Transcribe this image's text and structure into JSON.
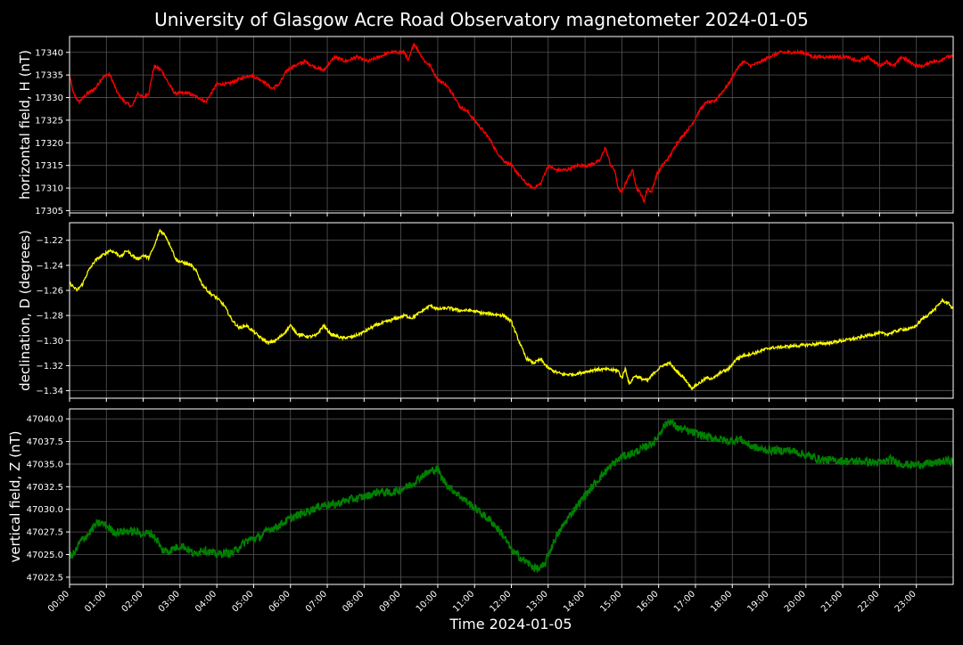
{
  "chart_data": {
    "title": "University of Glasgow Acre Road Observatory magnetometer 2024-01-05",
    "background_color": "#000000",
    "grid": true,
    "grid_color": "#555555",
    "xlabel": "Time 2024-01-05",
    "x_tick_labels": [
      "00:00",
      "01:00",
      "02:00",
      "03:00",
      "04:00",
      "05:00",
      "06:00",
      "07:00",
      "08:00",
      "09:00",
      "10:00",
      "11:00",
      "12:00",
      "13:00",
      "14:00",
      "15:00",
      "16:00",
      "17:00",
      "18:00",
      "19:00",
      "20:00",
      "21:00",
      "22:00",
      "23:00"
    ],
    "x_range_hours": [
      0,
      24
    ],
    "panels": [
      {
        "type": "line",
        "ylabel": "horizontal field, H (nT)",
        "color": "#ff0000",
        "ylim": [
          17304.5,
          17343.5
        ],
        "yticks": [
          17305,
          17310,
          17315,
          17320,
          17325,
          17330,
          17335,
          17340
        ],
        "y_tick_labels": [
          "17305",
          "17310",
          "17315",
          "17320",
          "17325",
          "17330",
          "17335",
          "17340"
        ],
        "noise": 0.35,
        "x": [
          0,
          0.1,
          0.25,
          0.5,
          0.7,
          0.85,
          1.0,
          1.1,
          1.3,
          1.5,
          1.7,
          1.85,
          2.0,
          2.15,
          2.3,
          2.5,
          2.7,
          2.85,
          3.0,
          3.2,
          3.5,
          3.7,
          4.0,
          4.3,
          4.6,
          4.9,
          5.2,
          5.5,
          5.7,
          5.9,
          6.1,
          6.4,
          6.6,
          6.9,
          7.2,
          7.5,
          7.8,
          8.1,
          8.4,
          8.7,
          9.0,
          9.1,
          9.2,
          9.35,
          9.5,
          9.65,
          9.8,
          10.0,
          10.2,
          10.4,
          10.6,
          10.8,
          11.0,
          11.2,
          11.4,
          11.6,
          11.8,
          12.0,
          12.2,
          12.4,
          12.6,
          12.8,
          13.0,
          13.2,
          13.5,
          13.8,
          14.1,
          14.4,
          14.55,
          14.7,
          14.8,
          14.9,
          15.0,
          15.15,
          15.3,
          15.4,
          15.5,
          15.6,
          15.7,
          15.8,
          15.95,
          16.1,
          16.3,
          16.5,
          16.7,
          16.9,
          17.1,
          17.3,
          17.5,
          17.7,
          17.9,
          18.1,
          18.3,
          18.5,
          18.8,
          19.0,
          19.3,
          19.6,
          19.9,
          20.2,
          20.5,
          20.8,
          21.1,
          21.4,
          21.7,
          22.0,
          22.2,
          22.4,
          22.6,
          22.8,
          23.0,
          23.2,
          23.4,
          23.6,
          23.8,
          24.0
        ],
        "values": [
          17335,
          17331,
          17329,
          17331,
          17332,
          17334,
          17335,
          17335,
          17331,
          17329,
          17328,
          17331,
          17330,
          17331,
          17337,
          17336,
          17333,
          17331,
          17331,
          17331,
          17330,
          17329,
          17333,
          17333,
          17334,
          17335,
          17334,
          17332,
          17333,
          17336,
          17337,
          17338,
          17337,
          17336,
          17339,
          17338,
          17339,
          17338,
          17339,
          17340,
          17340,
          17340,
          17338,
          17342,
          17340,
          17338,
          17337,
          17334,
          17333,
          17331,
          17328,
          17327,
          17325,
          17323,
          17321,
          17318,
          17316,
          17315,
          17313,
          17311,
          17310,
          17311,
          17315,
          17314,
          17314,
          17315,
          17315,
          17316,
          17319,
          17315,
          17314,
          17310,
          17309,
          17312,
          17314,
          17310,
          17309,
          17307,
          17310,
          17309,
          17313,
          17315,
          17317,
          17320,
          17322,
          17324,
          17327,
          17329,
          17329,
          17331,
          17333,
          17336,
          17338,
          17337,
          17338,
          17339,
          17340,
          17340,
          17340,
          17339,
          17339,
          17339,
          17339,
          17338,
          17339,
          17337,
          17338,
          17337,
          17339,
          17338,
          17337,
          17337,
          17338,
          17338,
          17339,
          17339
        ]
      },
      {
        "type": "line",
        "ylabel": "declination, D (degrees)",
        "color": "#ffff00",
        "ylim": [
          -1.346,
          -1.206
        ],
        "yticks": [
          -1.34,
          -1.32,
          -1.3,
          -1.28,
          -1.26,
          -1.24,
          -1.22
        ],
        "y_tick_labels": [
          "−1.34",
          "−1.32",
          "−1.30",
          "−1.28",
          "−1.26",
          "−1.24",
          "−1.22"
        ],
        "noise": 0.0012,
        "x": [
          0,
          0.2,
          0.35,
          0.5,
          0.7,
          0.9,
          1.1,
          1.25,
          1.4,
          1.55,
          1.7,
          1.85,
          2.0,
          2.15,
          2.3,
          2.45,
          2.6,
          2.75,
          2.9,
          3.1,
          3.3,
          3.45,
          3.6,
          3.8,
          4.0,
          4.2,
          4.4,
          4.6,
          4.8,
          5.0,
          5.2,
          5.4,
          5.6,
          5.8,
          6.0,
          6.2,
          6.5,
          6.7,
          6.9,
          7.1,
          7.4,
          7.7,
          8.0,
          8.3,
          8.5,
          8.8,
          9.1,
          9.3,
          9.5,
          9.8,
          10.0,
          10.3,
          10.6,
          10.9,
          11.2,
          11.5,
          11.8,
          12.0,
          12.2,
          12.4,
          12.6,
          12.8,
          13.0,
          13.2,
          13.4,
          13.7,
          14.0,
          14.3,
          14.6,
          14.9,
          15.0,
          15.1,
          15.2,
          15.35,
          15.5,
          15.7,
          15.9,
          16.1,
          16.3,
          16.5,
          16.7,
          16.9,
          17.1,
          17.3,
          17.5,
          17.7,
          17.9,
          18.1,
          18.3,
          18.6,
          19.0,
          19.4,
          19.8,
          20.2,
          20.6,
          21.0,
          21.4,
          21.8,
          22.0,
          22.2,
          22.4,
          22.6,
          22.8,
          23.0,
          23.15,
          23.3,
          23.5,
          23.7,
          23.9,
          24.0
        ],
        "values": [
          -1.254,
          -1.26,
          -1.255,
          -1.245,
          -1.236,
          -1.232,
          -1.228,
          -1.23,
          -1.233,
          -1.228,
          -1.232,
          -1.235,
          -1.232,
          -1.234,
          -1.225,
          -1.212,
          -1.216,
          -1.225,
          -1.236,
          -1.238,
          -1.24,
          -1.245,
          -1.255,
          -1.262,
          -1.266,
          -1.272,
          -1.283,
          -1.29,
          -1.288,
          -1.293,
          -1.298,
          -1.302,
          -1.3,
          -1.295,
          -1.288,
          -1.295,
          -1.297,
          -1.296,
          -1.288,
          -1.295,
          -1.298,
          -1.297,
          -1.293,
          -1.288,
          -1.286,
          -1.283,
          -1.28,
          -1.282,
          -1.278,
          -1.272,
          -1.275,
          -1.274,
          -1.276,
          -1.276,
          -1.278,
          -1.279,
          -1.28,
          -1.285,
          -1.3,
          -1.314,
          -1.318,
          -1.315,
          -1.322,
          -1.325,
          -1.327,
          -1.327,
          -1.325,
          -1.323,
          -1.323,
          -1.324,
          -1.33,
          -1.322,
          -1.335,
          -1.328,
          -1.33,
          -1.332,
          -1.325,
          -1.32,
          -1.318,
          -1.325,
          -1.33,
          -1.338,
          -1.334,
          -1.33,
          -1.33,
          -1.325,
          -1.323,
          -1.315,
          -1.312,
          -1.31,
          -1.306,
          -1.305,
          -1.304,
          -1.303,
          -1.302,
          -1.3,
          -1.298,
          -1.295,
          -1.294,
          -1.295,
          -1.293,
          -1.291,
          -1.291,
          -1.288,
          -1.283,
          -1.28,
          -1.275,
          -1.268,
          -1.271,
          -1.275
        ]
      },
      {
        "type": "line",
        "ylabel": "vertical field, Z (nT)",
        "color": "#008000",
        "ylim": [
          47021.7,
          47041.1
        ],
        "yticks": [
          47022.5,
          47025.0,
          47027.5,
          47030.0,
          47032.5,
          47035.0,
          47037.5,
          47040.0
        ],
        "y_tick_labels": [
          "47022.5",
          "47025.0",
          "47027.5",
          "47030.0",
          "47032.5",
          "47035.0",
          "47037.5",
          "47040.0"
        ],
        "noise": 0.45,
        "x": [
          0,
          0.15,
          0.3,
          0.5,
          0.7,
          0.85,
          1.0,
          1.2,
          1.4,
          1.6,
          1.8,
          2.0,
          2.2,
          2.4,
          2.5,
          2.7,
          2.9,
          3.05,
          3.2,
          3.4,
          3.6,
          3.8,
          4.0,
          4.2,
          4.4,
          4.6,
          4.8,
          5.0,
          5.2,
          5.4,
          5.6,
          5.8,
          6.0,
          6.3,
          6.6,
          6.9,
          7.2,
          7.5,
          7.8,
          8.1,
          8.4,
          8.7,
          9.0,
          9.3,
          9.6,
          9.8,
          10.0,
          10.1,
          10.3,
          10.6,
          10.9,
          11.2,
          11.5,
          11.8,
          12.0,
          12.2,
          12.4,
          12.6,
          12.75,
          12.9,
          13.0,
          13.2,
          13.5,
          13.8,
          14.1,
          14.4,
          14.7,
          15.0,
          15.3,
          15.6,
          15.9,
          16.1,
          16.3,
          16.5,
          16.7,
          16.9,
          17.1,
          17.3,
          17.6,
          17.9,
          18.2,
          18.5,
          18.8,
          19.2,
          19.6,
          20.0,
          20.4,
          20.8,
          21.2,
          21.6,
          22.0,
          22.3,
          22.6,
          22.9,
          23.2,
          23.5,
          23.8,
          24.0
        ],
        "values": [
          47024.8,
          47025.2,
          47026.5,
          47027.2,
          47028.3,
          47028.5,
          47028.2,
          47027.5,
          47027.5,
          47027.6,
          47027.5,
          47027.3,
          47027.4,
          47026.5,
          47025.5,
          47025.4,
          47025.8,
          47026.0,
          47025.6,
          47025.0,
          47025.6,
          47025.3,
          47025.0,
          47025.2,
          47025.1,
          47025.8,
          47026.5,
          47026.8,
          47027.0,
          47027.8,
          47028.0,
          47028.5,
          47029.0,
          47029.5,
          47030.0,
          47030.5,
          47030.5,
          47031.0,
          47031.2,
          47031.5,
          47032.0,
          47031.8,
          47032.2,
          47032.8,
          47033.8,
          47034.2,
          47034.5,
          47033.5,
          47032.5,
          47031.5,
          47030.5,
          47029.5,
          47028.5,
          47027.0,
          47025.5,
          47024.8,
          47024.2,
          47023.6,
          47023.4,
          47023.8,
          47025.0,
          47026.8,
          47028.8,
          47030.5,
          47032.0,
          47033.5,
          47034.8,
          47035.8,
          47036.2,
          47036.8,
          47037.5,
          47039.0,
          47039.8,
          47039.0,
          47038.8,
          47038.5,
          47038.3,
          47038.0,
          47037.8,
          47037.5,
          47037.8,
          47037.0,
          47036.6,
          47036.5,
          47036.5,
          47036.0,
          47035.5,
          47035.4,
          47035.3,
          47035.3,
          47035.1,
          47035.5,
          47035.0,
          47034.9,
          47035.0,
          47035.1,
          47035.4,
          47035.3
        ]
      }
    ]
  }
}
